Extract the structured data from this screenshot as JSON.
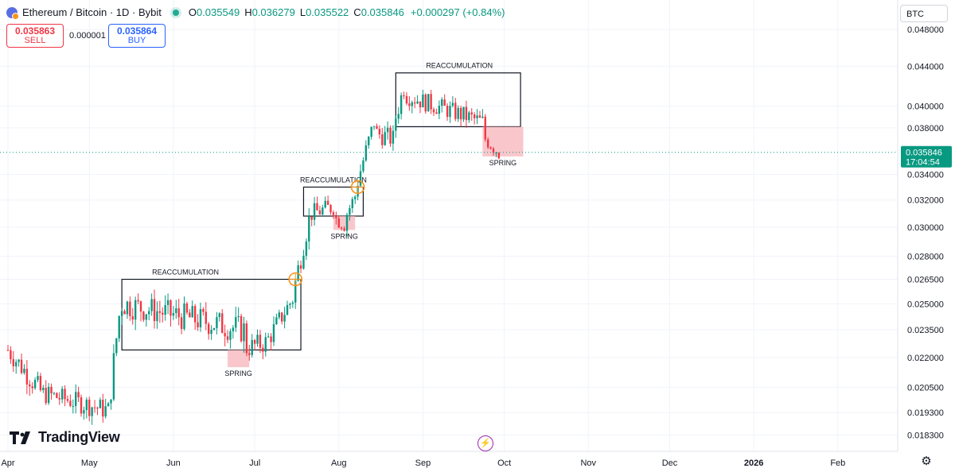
{
  "header": {
    "symbol_title": "Ethereum / Bitcoin · 1D · Bybit",
    "open_key": "O",
    "open_value": "0.035549",
    "high_key": "H",
    "high_value": "0.036279",
    "low_key": "L",
    "low_value": "0.035522",
    "close_key": "C",
    "close_value": "0.035846",
    "change_value": "+0.000297 (+0.84%)"
  },
  "trade": {
    "sell_price": "0.035863",
    "sell_label": "SELL",
    "spread": "0.000001",
    "buy_price": "0.035864",
    "buy_label": "BUY"
  },
  "currency_button": "BTC",
  "brand": "TradingView",
  "colors": {
    "up": "#089981",
    "down": "#f23645",
    "spring_fill": "#f7b4ba",
    "marker": "#f7931a",
    "last_price": "#089981"
  },
  "icons": {
    "settings": "gear-icon",
    "events": "lightning-icon"
  },
  "chart_data": {
    "type": "candlestick",
    "x_ticks": [
      {
        "label": "Apr",
        "date": "2025-04-01"
      },
      {
        "label": "May",
        "date": "2025-05-01"
      },
      {
        "label": "Jun",
        "date": "2025-06-01"
      },
      {
        "label": "Jul",
        "date": "2025-07-01"
      },
      {
        "label": "Aug",
        "date": "2025-08-01"
      },
      {
        "label": "Sep",
        "date": "2025-09-01"
      },
      {
        "label": "Oct",
        "date": "2025-10-01"
      },
      {
        "label": "Nov",
        "date": "2025-11-01"
      },
      {
        "label": "Dec",
        "date": "2025-12-01"
      },
      {
        "label": "2026",
        "date": "2026-01-01"
      },
      {
        "label": "Feb",
        "date": "2026-02-01"
      }
    ],
    "y_ticks": [
      "0.048000",
      "0.044000",
      "0.040000",
      "0.038000",
      "0.034000",
      "0.032000",
      "0.030000",
      "0.028000",
      "0.026500",
      "0.025000",
      "0.023500",
      "0.022000",
      "0.020500",
      "0.019300",
      "0.018300"
    ],
    "y_scale": "log",
    "x_range": [
      "2025-04-01",
      "2026-02-26"
    ],
    "y_range": [
      0.0176,
      0.0515
    ],
    "grid": true,
    "last_price": {
      "value": "0.035846",
      "countdown": "17:04:54"
    },
    "candles_by_phase": [
      {
        "start": "2025-04-01",
        "days": 13,
        "from": 0.0224,
        "to": 0.0203,
        "vol": 0.0006
      },
      {
        "start": "2025-04-14",
        "days": 25,
        "from": 0.0202,
        "to": 0.0194,
        "vol": 0.0005
      },
      {
        "start": "2025-05-09",
        "days": 4,
        "from": 0.0205,
        "to": 0.0243,
        "vol": 0.0007
      },
      {
        "start": "2025-05-13",
        "days": 46,
        "from": 0.025,
        "to": 0.0235,
        "vol": 0.0008
      },
      {
        "start": "2025-06-28",
        "days": 8,
        "from": 0.0225,
        "to": 0.0228,
        "vol": 0.0006
      },
      {
        "start": "2025-07-06",
        "days": 10,
        "from": 0.023,
        "to": 0.0253,
        "vol": 0.0006
      },
      {
        "start": "2025-07-16",
        "days": 6,
        "from": 0.0263,
        "to": 0.0305,
        "vol": 0.0008
      },
      {
        "start": "2025-07-22",
        "days": 9,
        "from": 0.031,
        "to": 0.0315,
        "vol": 0.0007
      },
      {
        "start": "2025-07-31",
        "days": 4,
        "from": 0.0306,
        "to": 0.0302,
        "vol": 0.0006
      },
      {
        "start": "2025-08-04",
        "days": 4,
        "from": 0.031,
        "to": 0.0323,
        "vol": 0.0006
      },
      {
        "start": "2025-08-08",
        "days": 7,
        "from": 0.0335,
        "to": 0.0385,
        "vol": 0.0008
      },
      {
        "start": "2025-08-15",
        "days": 7,
        "from": 0.0375,
        "to": 0.037,
        "vol": 0.0009
      },
      {
        "start": "2025-08-22",
        "days": 4,
        "from": 0.039,
        "to": 0.0418,
        "vol": 0.001
      },
      {
        "start": "2025-08-26",
        "days": 29,
        "from": 0.041,
        "to": 0.0385,
        "vol": 0.0009
      },
      {
        "start": "2025-09-24",
        "days": 6,
        "from": 0.037,
        "to": 0.0358,
        "vol": 0.0007
      }
    ],
    "annotations": [
      {
        "kind": "box",
        "label": "REACCUMULATION",
        "x0": "2025-05-13",
        "x1": "2025-07-18",
        "y_low": 0.0224,
        "y_high": 0.0265
      },
      {
        "kind": "spring",
        "label": "SPRING",
        "x0": "2025-06-21",
        "x1": "2025-06-29",
        "y_low": 0.0215,
        "y_high": 0.0224
      },
      {
        "kind": "marker",
        "x": "2025-07-16",
        "y": 0.0265
      },
      {
        "kind": "box",
        "label": "REACCUMULATION",
        "x0": "2025-07-19",
        "x1": "2025-08-10",
        "y_low": 0.0308,
        "y_high": 0.033
      },
      {
        "kind": "spring",
        "label": "SPRING",
        "x0": "2025-07-30",
        "x1": "2025-08-07",
        "y_low": 0.0298,
        "y_high": 0.0308
      },
      {
        "kind": "marker",
        "x": "2025-08-08",
        "y": 0.033
      },
      {
        "kind": "box",
        "label": "REACCUMULATION",
        "x0": "2025-08-22",
        "x1": "2025-10-07",
        "y_low": 0.0381,
        "y_high": 0.0433
      },
      {
        "kind": "spring",
        "label": "SPRING",
        "x0": "2025-09-23",
        "x1": "2025-10-08",
        "y_low": 0.0355,
        "y_high": 0.0381
      }
    ]
  }
}
